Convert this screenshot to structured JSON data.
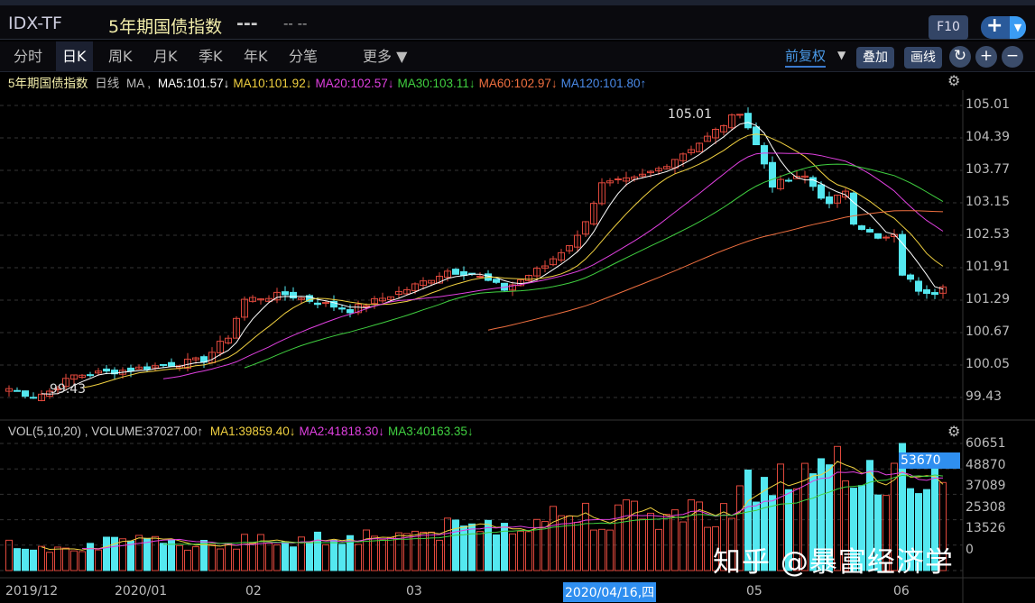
{
  "header": {
    "symbol": "IDX-TF",
    "name": "5年期国债指数",
    "price": "---",
    "change": "-- --",
    "f10": "F10",
    "add": "+",
    "add_dd": "▼"
  },
  "tabs": [
    "分时",
    "日K",
    "周K",
    "月K",
    "季K",
    "年K",
    "分笔",
    "更多 ▼"
  ],
  "active_tab": 1,
  "toolbar": {
    "adjust": "前复权",
    "adjust_dd": "▼",
    "overlay": "叠加",
    "draw": "画线",
    "refresh": "↻",
    "zoom_in": "+",
    "zoom_out": "−"
  },
  "legend": {
    "name": "5年期国债指数",
    "period": "日线",
    "ma": "MA ,",
    "items": [
      {
        "label": "MA5:101.57↓",
        "color": "#ffffff"
      },
      {
        "label": "MA10:101.92↓",
        "color": "#f0d040"
      },
      {
        "label": "MA20:102.57↓",
        "color": "#e040e0"
      },
      {
        "label": "MA30:103.11↓",
        "color": "#40d040"
      },
      {
        "label": "MA60:102.97↓",
        "color": "#f07040"
      },
      {
        "label": "MA120:101.80↑",
        "color": "#4a8ae8"
      }
    ]
  },
  "vol_legend": {
    "title": "VOL(5,10,20) , VOLUME:37027.00↑",
    "items": [
      {
        "label": "MA1:39859.40↓",
        "color": "#f0d040"
      },
      {
        "label": "MA2:41818.30↓",
        "color": "#e040e0"
      },
      {
        "label": "MA3:40163.35↓",
        "color": "#40d040"
      }
    ]
  },
  "price_axis": [
    "105.01",
    "104.39",
    "103.77",
    "103.15",
    "102.53",
    "101.91",
    "101.29",
    "100.67",
    "100.05",
    "99.43"
  ],
  "vol_axis": [
    "60651",
    "48870",
    "37089",
    "25308",
    "13526",
    "0"
  ],
  "vol_highlight": "53670",
  "dates": [
    "2019/12",
    "2020/01",
    "02",
    "03",
    "05",
    "06"
  ],
  "date_highlight": "2020/04/16,四",
  "high_label": "105.01",
  "low_label": "99.43",
  "watermark": "知乎 @暴富经济学",
  "chart_data": {
    "type": "candlestick",
    "ylim": [
      99.43,
      105.01
    ],
    "vol_ylim": [
      0,
      60651
    ],
    "candles": 116,
    "close_anchors": [
      [
        0,
        99.6
      ],
      [
        3,
        99.45
      ],
      [
        5,
        99.55
      ],
      [
        8,
        99.85
      ],
      [
        14,
        99.95
      ],
      [
        24,
        100.15
      ],
      [
        27,
        100.6
      ],
      [
        29,
        101.3
      ],
      [
        34,
        101.4
      ],
      [
        42,
        101.1
      ],
      [
        49,
        101.5
      ],
      [
        54,
        101.85
      ],
      [
        57,
        101.8
      ],
      [
        61,
        101.5
      ],
      [
        66,
        101.95
      ],
      [
        70,
        102.5
      ],
      [
        73,
        103.5
      ],
      [
        77,
        103.6
      ],
      [
        80,
        103.8
      ],
      [
        86,
        104.4
      ],
      [
        90,
        104.9
      ],
      [
        91,
        104.6
      ],
      [
        93,
        103.9
      ],
      [
        94,
        103.5
      ],
      [
        98,
        103.65
      ],
      [
        101,
        103.1
      ],
      [
        103,
        103.4
      ],
      [
        104,
        102.8
      ],
      [
        107,
        102.45
      ],
      [
        109,
        102.5
      ],
      [
        110,
        101.8
      ],
      [
        112,
        101.5
      ],
      [
        114,
        101.45
      ],
      [
        115,
        101.6
      ]
    ],
    "volume_anchors": [
      [
        0,
        12000
      ],
      [
        30,
        14000
      ],
      [
        50,
        18000
      ],
      [
        60,
        22000
      ],
      [
        70,
        28000
      ],
      [
        80,
        26000
      ],
      [
        88,
        30000
      ],
      [
        92,
        42000
      ],
      [
        100,
        45000
      ],
      [
        108,
        48000
      ],
      [
        110,
        60651
      ],
      [
        112,
        45000
      ],
      [
        115,
        37027
      ]
    ],
    "colors": {
      "up": "#e0483c",
      "down": "#54e8f0"
    }
  }
}
